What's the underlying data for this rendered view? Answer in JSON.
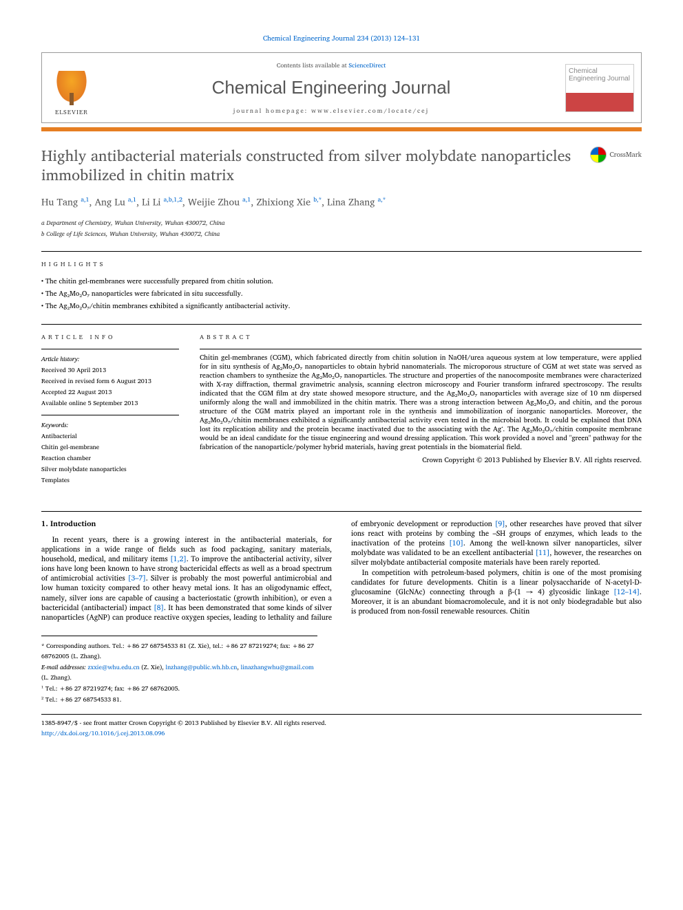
{
  "citation": "Chemical Engineering Journal 234 (2013) 124–131",
  "header": {
    "contents_prefix": "Contents lists available at ",
    "contents_link": "ScienceDirect",
    "journal_name": "Chemical Engineering Journal",
    "homepage_prefix": "journal homepage: ",
    "homepage_url": "www.elsevier.com/locate/cej",
    "publisher": "ELSEVIER",
    "cover_text": "Chemical Engineering Journal"
  },
  "crossmark": "CrossMark",
  "title": "Highly antibacterial materials constructed from silver molybdate nanoparticles immobilized in chitin matrix",
  "authors_html": "Hu Tang <sup>a,1</sup>, Ang Lu <sup>a,1</sup>, Li Li <sup>a,b,1,2</sup>, Weijie Zhou <sup>a,1</sup>, Zhixiong Xie <sup>b,*</sup>, Lina Zhang <sup>a,*</sup>",
  "affiliations": [
    "a Department of Chemistry, Wuhan University, Wuhan 430072, China",
    "b College of Life Sciences, Wuhan University, Wuhan 430072, China"
  ],
  "highlights_label": "highlights",
  "highlights": [
    "The chitin gel-membranes were successfully prepared from chitin solution.",
    "The Ag₂Mo₂O₇ nanoparticles were fabricated in situ successfully.",
    "The Ag₂Mo₂O₇/chitin membranes exhibited a significantly antibacterial activity."
  ],
  "article_info_label": "article info",
  "history_heading": "Article history:",
  "history": [
    "Received 30 April 2013",
    "Received in revised form 6 August 2013",
    "Accepted 22 August 2013",
    "Available online 5 September 2013"
  ],
  "keywords_heading": "Keywords:",
  "keywords": [
    "Antibacterial",
    "Chitin gel-membrane",
    "Reaction chamber",
    "Silver molybdate nanoparticles",
    "Templates"
  ],
  "abstract_label": "abstract",
  "abstract": "Chitin gel-membranes (CGM), which fabricated directly from chitin solution in NaOH/urea aqueous system at low temperature, were applied for in situ synthesis of Ag₂Mo₂O₇ nanoparticles to obtain hybrid nanomaterials. The microporous structure of CGM at wet state was served as reaction chambers to synthesize the Ag₂Mo₂O₇ nanoparticles. The structure and properties of the nanocomposite membranes were characterized with X-ray diffraction, thermal gravimetric analysis, scanning electron microscopy and Fourier transform infrared spectroscopy. The results indicated that the CGM film at dry state showed mesopore structure, and the Ag₂Mo₂O₇ nanoparticles with average size of 10 nm dispersed uniformly along the wall and immobilized in the chitin matrix. There was a strong interaction between Ag₂Mo₂O₇ and chitin, and the porous structure of the CGM matrix played an important role in the synthesis and immobilization of inorganic nanoparticles. Moreover, the Ag₂Mo₂O₇/chitin membranes exhibited a significantly antibacterial activity even tested in the microbial broth. It could be explained that DNA lost its replication ability and the protein became inactivated due to the associating with the Ag⁺. The Ag₂Mo₂O₇/chitin composite membrane would be an ideal candidate for the tissue engineering and wound dressing application. This work provided a novel and \"green\" pathway for the fabrication of the nanoparticle/polymer hybrid materials, having great potentials in the biomaterial field.",
  "abstract_copyright": "Crown Copyright © 2013 Published by Elsevier B.V. All rights reserved.",
  "section1_heading": "1. Introduction",
  "intro_p1_a": "In recent years, there is a growing interest in the antibacterial materials, for applications in a wide range of fields such as food packaging, sanitary materials, household, medical, and military items ",
  "intro_p1_ref1": "[1,2]",
  "intro_p1_b": ". To improve the antibacterial activity, silver ions have long been known to have strong bactericidal effects as well as a broad spectrum of antimicrobial activities ",
  "intro_p1_ref2": "[3–7]",
  "intro_p1_c": ". Silver is probably the most powerful antimicrobial and low human toxicity compared to other heavy metal ions. It has an oligodynamic effect, namely, silver ions are capable of causing a bacteriostatic (growth inhibition), or even a bactericidal (antibacterial) impact ",
  "intro_p1_ref3": "[8]",
  "intro_p1_d": ". It has been demonstrated that some kinds of silver nanoparticles (AgNP) can produce reactive oxygen species, leading to lethality and failure of embryonic development or reproduction ",
  "intro_p1_ref4": "[9]",
  "intro_p1_e": ", other researches have proved that silver ions react with proteins by combing the –SH groups of enzymes, which leads to the inactivation of the proteins ",
  "intro_p1_ref5": "[10]",
  "intro_p1_f": ". Among the well-known silver nanoparticles, silver molybdate was validated to be an excellent antibacterial ",
  "intro_p1_ref6": "[11]",
  "intro_p1_g": ", however, the researches on silver molybdate antibacterial composite materials have been rarely reported.",
  "intro_p2_a": "In competition with petroleum-based polymers, chitin is one of the most promising candidates for future developments. Chitin is a linear polysaccharide of N-acetyl-D-glucosamine (GlcNAc) connecting through a β-(1 → 4) glycosidic linkage ",
  "intro_p2_ref1": "[12–14]",
  "intro_p2_b": ". Moreover, it is an abundant biomacromolecule, and it is not only biodegradable but also is produced from non-fossil renewable resources. Chitin",
  "footnotes": {
    "corr": "* Corresponding authors. Tel.: +86 27 68754533 81 (Z. Xie), tel.: +86 27 87219274; fax: +86 27 68762005 (L. Zhang).",
    "email_label": "E-mail addresses: ",
    "email1": "zxxie@whu.edu.cn",
    "email1_who": " (Z. Xie), ",
    "email2": "lnzhang@public.wh.hb.cn",
    "email2_sep": ", ",
    "email3": "linazhangwhu@gmail.com",
    "email3_who": " (L. Zhang).",
    "n1": "¹ Tel.: +86 27 87219274; fax: +86 27 68762005.",
    "n2": "² Tel.: +86 27 68754533 81."
  },
  "footer": {
    "line1": "1385-8947/$ - see front matter Crown Copyright © 2013 Published by Elsevier B.V. All rights reserved.",
    "line2": "http://dx.doi.org/10.1016/j.cej.2013.08.096"
  },
  "colors": {
    "link": "#0066cc",
    "accent": "#e67e22",
    "title_gray": "#5a5a5a"
  }
}
